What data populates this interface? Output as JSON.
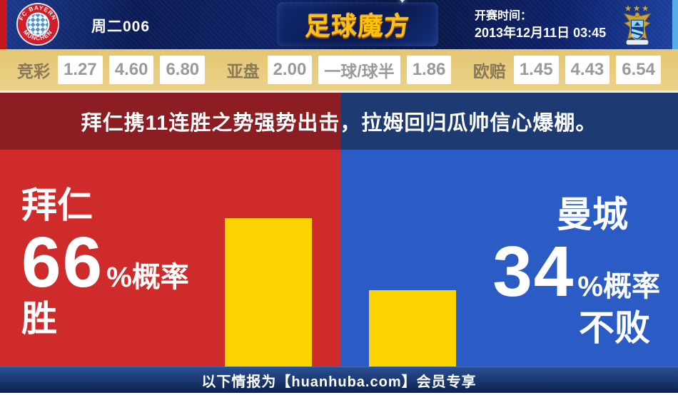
{
  "header": {
    "match_number": "周二006",
    "site_logo_text": "足球魔方",
    "kickoff_label": "开赛时间：",
    "kickoff_time": "2013年12月11日 03:45",
    "home_crest": "bayern-munich-crest",
    "away_crest": "man-city-crest",
    "home_crest_text_top": "FC BAYERN",
    "home_crest_text_bottom": "MÜNCHEN"
  },
  "odds": {
    "groups": [
      {
        "label": "竞彩",
        "values": [
          "1.27",
          "4.60",
          "6.80"
        ]
      },
      {
        "label": "亚盘",
        "values": [
          "2.00",
          "一球/球半",
          "1.86"
        ]
      },
      {
        "label": "欧赔",
        "values": [
          "1.45",
          "4.43",
          "6.54"
        ]
      }
    ]
  },
  "headline": "拜仁携11连胜之势强势出击，拉姆回归瓜帅信心爆棚。",
  "prediction": {
    "home": {
      "team": "拜仁",
      "percent": "66",
      "percent_suffix": "%概率",
      "outcome": "胜"
    },
    "away": {
      "team": "曼城",
      "percent": "34",
      "percent_suffix": "%概率",
      "outcome": "不败"
    }
  },
  "footer": {
    "text": "以下情报为【huanhuba.com】会员专享"
  },
  "colors": {
    "home_panel": "#cf2b2b",
    "away_panel": "#2b5cc5",
    "home_band": "#8c1e23",
    "away_band": "#1e3a72",
    "bar_yellow": "#fcd203",
    "odds_bg": "#e9cd80",
    "header_navy": "#0c2068",
    "left_strip_red": "#c2191f",
    "right_strip_blue": "#56ace6",
    "logo_gold": "#ffc20e"
  },
  "chart_data": {
    "type": "bar",
    "categories": [
      "拜仁",
      "曼城"
    ],
    "values": [
      66,
      34
    ],
    "unit": "%",
    "value_labels": [
      "66%概率 胜",
      "34%概率 不败"
    ],
    "bar_color": "#fcd203",
    "orientation": "vertical",
    "ylim": [
      0,
      100
    ]
  }
}
